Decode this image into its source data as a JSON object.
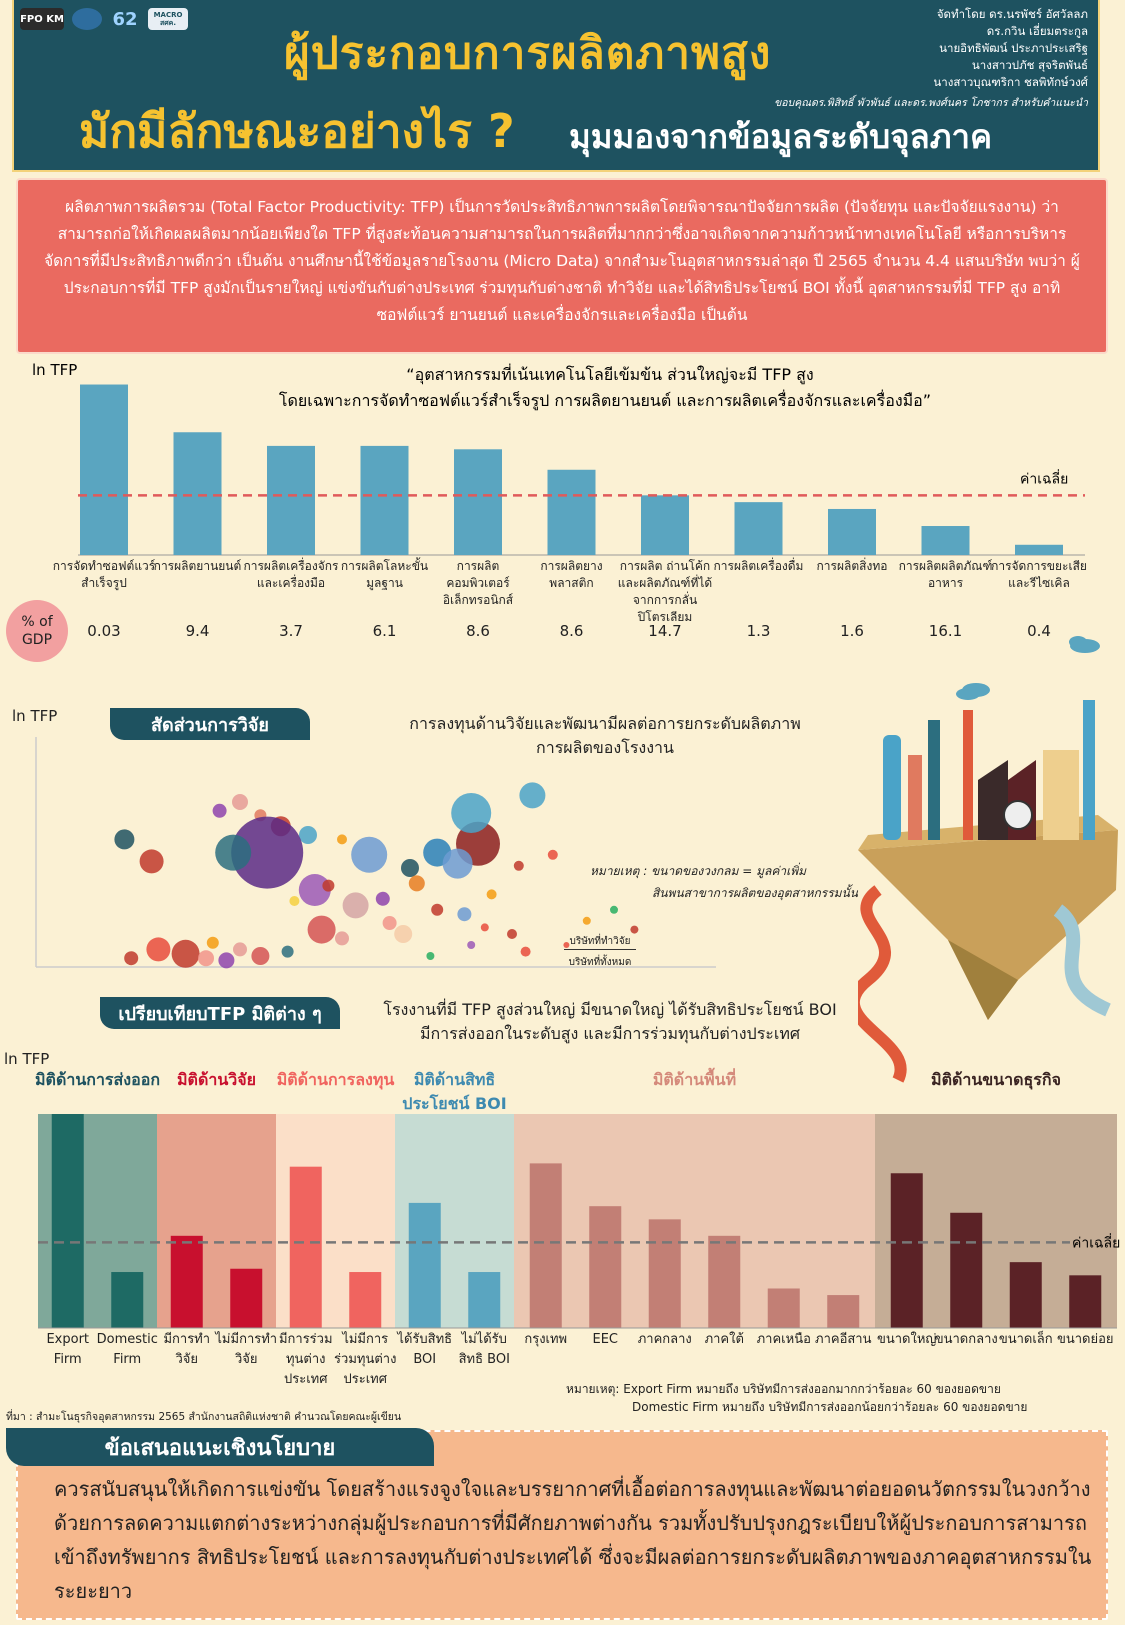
{
  "header": {
    "logos": [
      "FPO KM",
      "",
      "62",
      "MACRO สศค."
    ],
    "title_line1": "ผู้ประกอบการผลิตภาพสูง",
    "title_line2": "มักมีลักษณะอย่างไร ?",
    "title_line3": "มุมมองจากข้อมูลระดับจุลภาค",
    "authors": [
      "จัดทำโดย ดร.นรพัชร์ อัศวัลลภ",
      "ดร.กวิน เอี่ยมตระกูล",
      "นายอิทธิพัฒน์ ประภาประเสริฐ",
      "นางสาวปภัช สุจริตพันธ์",
      "นางสาวบุณฑริกา ชลพิทักษ์วงศ์"
    ],
    "ack": "ขอบคุณดร.พิสิทธิ์ พัวพันธ์ และดร.พงศ์นคร โภชากร สำหรับคำแนะนำ"
  },
  "intro": "ผลิตภาพการผลิตรวม (Total Factor Productivity: TFP) เป็นการวัดประสิทธิภาพการผลิตโดยพิจารณาปัจจัยการผลิต (ปัจจัยทุน และปัจจัยแรงงาน) ว่าสามารถก่อให้เกิดผลผลิตมากน้อยเพียงใด TFP ที่สูงสะท้อนความสามารถในการผลิตที่มากกว่าซึ่งอาจเกิดจากความก้าวหน้าทางเทคโนโลยี หรือการบริหารจัดการที่มีประสิทธิภาพดีกว่า เป็นต้น งานศึกษานี้ใช้ข้อมูลรายโรงงาน (Micro Data) จากสำมะโนอุตสาหกรรมล่าสุด ปี 2565 จำนวน 4.4 แสนบริษัท พบว่า ผู้ประกอบการที่มี TFP สูงมักเป็นรายใหญ่ แข่งขันกับต่างประเทศ ร่วมทุนกับต่างชาติ ทำวิจัย และได้สิทธิประโยชน์ BOI ทั้งนี้ อุตสาหกรรมที่มี TFP สูง อาทิ ซอฟต์แวร์ ยานยนต์ และเครื่องจักรและเครื่องมือ เป็นต้น",
  "chart_data": [
    {
      "type": "bar",
      "ylabel": "ln TFP",
      "title": "“อุตสาหกรรมที่เน้นเทคโนโลยีเข้มข้น ส่วนใหญ่จะมี TFP สูง",
      "subtitle": "โดยเฉพาะการจัดทำซอฟต์แวร์สำเร็จรูป การผลิตยานยนต์ และการผลิตเครื่องจักรและเครื่องมือ”",
      "avg_label": "ค่าเฉลี่ย",
      "avg_value": 3.5,
      "categories": [
        "การจัดทำซอฟต์แวร์สำเร็จรูป",
        "การผลิตยานยนต์",
        "การผลิตเครื่องจักรและเครื่องมือ",
        "การผลิตโลหะขั้นมูลฐาน",
        "การผลิตคอมพิวเตอร์อิเล็กทรอนิกส์",
        "การผลิตยางพลาสติก",
        "การผลิต ถ่านโค้กและผลิตภัณฑ์ที่ได้จากการกลั่นปิโตรเลียม",
        "การผลิตเครื่องดื่ม",
        "การผลิตสิ่งทอ",
        "การผลิตผลิตภัณฑ์อาหาร",
        "การจัดการขยะเสียและรีไซเคิล"
      ],
      "values": [
        10,
        7.2,
        6.4,
        6.4,
        6.2,
        5.0,
        3.5,
        3.1,
        2.7,
        1.7,
        0.6
      ],
      "ylim": [
        0,
        10.5
      ],
      "gdp_label": "% of GDP",
      "gdp_share": [
        "0.03",
        "9.4",
        "3.7",
        "6.1",
        "8.6",
        "8.6",
        "14.7",
        "1.3",
        "1.6",
        "16.1",
        "0.4"
      ]
    },
    {
      "type": "scatter",
      "ylabel": "ln TFP",
      "tag": "สัดส่วนการวิจัย",
      "title": "การลงทุนด้านวิจัยและพัฒนามีผลต่อการยกระดับผลิตภาพ",
      "title2": "การผลิตของโรงงาน",
      "note1": "หมายเหตุ : ขนาดของวงกลม = มูลค่าเพิ่ม",
      "note2": "สินพนสาขาการผลิตของอุตสาหกรรมนั้น",
      "xlabel_num": "บริษัทที่ทำวิจัย",
      "xlabel_den": "บริษัทที่ทั้งหมด",
      "points": [
        {
          "x": 0.3,
          "y": 0.75,
          "r": 8,
          "c": "#e59b95"
        },
        {
          "x": 0.27,
          "y": 0.71,
          "r": 7,
          "c": "#8e44ad"
        },
        {
          "x": 0.33,
          "y": 0.69,
          "r": 6,
          "c": "#e07a5f"
        },
        {
          "x": 0.36,
          "y": 0.64,
          "r": 10,
          "c": "#c0392b"
        },
        {
          "x": 0.4,
          "y": 0.6,
          "r": 9,
          "c": "#4aa3c8"
        },
        {
          "x": 0.13,
          "y": 0.58,
          "r": 10,
          "c": "#1e5260"
        },
        {
          "x": 0.34,
          "y": 0.52,
          "r": 36,
          "c": "#5b2a86"
        },
        {
          "x": 0.29,
          "y": 0.52,
          "r": 18,
          "c": "#2c6e7f"
        },
        {
          "x": 0.17,
          "y": 0.48,
          "r": 12,
          "c": "#c0392b"
        },
        {
          "x": 0.45,
          "y": 0.58,
          "r": 5,
          "c": "#f39c12"
        },
        {
          "x": 0.49,
          "y": 0.51,
          "r": 18,
          "c": "#6c9bd2"
        },
        {
          "x": 0.55,
          "y": 0.45,
          "r": 9,
          "c": "#1e5260"
        },
        {
          "x": 0.56,
          "y": 0.38,
          "r": 8,
          "c": "#e67e22"
        },
        {
          "x": 0.59,
          "y": 0.52,
          "r": 14,
          "c": "#2980b9"
        },
        {
          "x": 0.65,
          "y": 0.56,
          "r": 22,
          "c": "#8b1e1e"
        },
        {
          "x": 0.64,
          "y": 0.7,
          "r": 20,
          "c": "#4aa3c8"
        },
        {
          "x": 0.73,
          "y": 0.78,
          "r": 13,
          "c": "#4aa3c8"
        },
        {
          "x": 0.62,
          "y": 0.47,
          "r": 15,
          "c": "#6c9bd2"
        },
        {
          "x": 0.71,
          "y": 0.46,
          "r": 5,
          "c": "#c0392b"
        },
        {
          "x": 0.76,
          "y": 0.51,
          "r": 5,
          "c": "#e74c3c"
        },
        {
          "x": 0.41,
          "y": 0.35,
          "r": 16,
          "c": "#9b59b6"
        },
        {
          "x": 0.38,
          "y": 0.3,
          "r": 5,
          "c": "#f4d03f"
        },
        {
          "x": 0.43,
          "y": 0.37,
          "r": 6,
          "c": "#c0392b"
        },
        {
          "x": 0.47,
          "y": 0.28,
          "r": 13,
          "c": "#d4a5a5"
        },
        {
          "x": 0.51,
          "y": 0.31,
          "r": 7,
          "c": "#8e44ad"
        },
        {
          "x": 0.42,
          "y": 0.17,
          "r": 14,
          "c": "#d35454"
        },
        {
          "x": 0.45,
          "y": 0.13,
          "r": 7,
          "c": "#e59b95"
        },
        {
          "x": 0.52,
          "y": 0.2,
          "r": 7,
          "c": "#f1948a"
        },
        {
          "x": 0.54,
          "y": 0.15,
          "r": 9,
          "c": "#f5cba7"
        },
        {
          "x": 0.59,
          "y": 0.26,
          "r": 6,
          "c": "#c0392b"
        },
        {
          "x": 0.63,
          "y": 0.24,
          "r": 7,
          "c": "#6c9bd2"
        },
        {
          "x": 0.67,
          "y": 0.33,
          "r": 5,
          "c": "#f39c12"
        },
        {
          "x": 0.7,
          "y": 0.15,
          "r": 5,
          "c": "#c0392b"
        },
        {
          "x": 0.81,
          "y": 0.21,
          "r": 4,
          "c": "#f39c12"
        },
        {
          "x": 0.85,
          "y": 0.26,
          "r": 4,
          "c": "#27ae60"
        },
        {
          "x": 0.88,
          "y": 0.17,
          "r": 4,
          "c": "#c0392b"
        },
        {
          "x": 0.72,
          "y": 0.07,
          "r": 5,
          "c": "#e74c3c"
        },
        {
          "x": 0.64,
          "y": 0.1,
          "r": 4,
          "c": "#9b59b6"
        },
        {
          "x": 0.18,
          "y": 0.08,
          "r": 12,
          "c": "#e74c3c"
        },
        {
          "x": 0.22,
          "y": 0.06,
          "r": 14,
          "c": "#c0392b"
        },
        {
          "x": 0.25,
          "y": 0.04,
          "r": 8,
          "c": "#f1948a"
        },
        {
          "x": 0.28,
          "y": 0.03,
          "r": 8,
          "c": "#8e44ad"
        },
        {
          "x": 0.3,
          "y": 0.08,
          "r": 7,
          "c": "#e59b95"
        },
        {
          "x": 0.33,
          "y": 0.05,
          "r": 9,
          "c": "#d35454"
        },
        {
          "x": 0.37,
          "y": 0.07,
          "r": 6,
          "c": "#2c6e7f"
        },
        {
          "x": 0.14,
          "y": 0.04,
          "r": 7,
          "c": "#c0392b"
        },
        {
          "x": 0.26,
          "y": 0.11,
          "r": 6,
          "c": "#f39c12"
        },
        {
          "x": 0.58,
          "y": 0.05,
          "r": 4,
          "c": "#27ae60"
        },
        {
          "x": 0.66,
          "y": 0.18,
          "r": 4,
          "c": "#e74c3c"
        },
        {
          "x": 0.78,
          "y": 0.1,
          "r": 3,
          "c": "#e74c3c"
        }
      ]
    },
    {
      "type": "bar",
      "ylabel": "ln TFP",
      "tag": "เปรียบเทียบTFP มิติต่าง ๆ",
      "title": "โรงงานที่มี TFP สูงส่วนใหญ่ มีขนาดใหญ่ ได้รับสิทธิประโยชน์ BOI",
      "title2": "มีการส่งออกในระดับสูง และมีการร่วมทุนกับต่างประเทศ",
      "avg_label": "ค่าเฉลี่ย",
      "avg_value": 2.6,
      "ylim": [
        0,
        6.5
      ],
      "groups": [
        {
          "name": "มิติด้านการส่งออก",
          "bg": "#7fa89a",
          "bar": "#1e6a64",
          "name_color": "#1e5260",
          "categories": [
            "Export Firm",
            "Domestic Firm"
          ],
          "values": [
            6.5,
            1.7
          ]
        },
        {
          "name": "มิติด้านวิจัย",
          "bg": "#e6a28d",
          "bar": "#c8102e",
          "name_color": "#c8102e",
          "categories": [
            "มีการทำวิจัย",
            "ไม่มีการทำวิจัย"
          ],
          "values": [
            2.8,
            1.8
          ]
        },
        {
          "name": "มิติด้านการลงทุน",
          "bg": "#fbdfc8",
          "bar": "#f0645f",
          "name_color": "#f0645f",
          "categories": [
            "มีการร่วมทุนต่างประเทศ",
            "ไม่มีการร่วมทุนต่างประเทศ"
          ],
          "values": [
            4.9,
            1.7
          ]
        },
        {
          "name": "มิติด้านสิทธิประโยชน์ BOI",
          "bg": "#c6dcd3",
          "bar": "#5aa5c0",
          "name_color": "#3e8ab0",
          "categories": [
            "ได้รับสิทธิ BOI",
            "ไม่ได้รับสิทธิ BOI"
          ],
          "values": [
            3.8,
            1.7
          ]
        },
        {
          "name": "มิติด้านพื้นที่",
          "bg": "#ebc7b2",
          "bar": "#c27f75",
          "name_color": "#d4897a",
          "categories": [
            "กรุงเทพ",
            "EEC",
            "ภาคกลาง",
            "ภาคใต้",
            "ภาคเหนือ",
            "ภาคอีสาน"
          ],
          "values": [
            5.0,
            3.7,
            3.3,
            2.8,
            1.2,
            1.0
          ]
        },
        {
          "name": "มิติด้านขนาดธุรกิจ",
          "bg": "#c5ad96",
          "bar": "#5b2226",
          "name_color": "#3a2422",
          "categories": [
            "ขนาดใหญ่",
            "ขนาดกลาง",
            "ขนาดเล็ก",
            "ขนาดย่อย"
          ],
          "values": [
            4.7,
            3.5,
            2.0,
            1.6
          ]
        }
      ]
    }
  ],
  "note_export": "หมายเหตุ: Export Firm หมายถึง บริษัทมีการส่งออกมากกว่าร้อยละ 60 ของยอดขาย",
  "note_domestic": "Domestic Firm หมายถึง บริษัทมีการส่งออกน้อยกว่าร้อยละ 60 ของยอดขาย",
  "source": "ที่มา : สำมะโนธุรกิจอุตสาหกรรม 2565 สำนักงานสถิติแห่งชาติ คำนวณโดยคณะผู้เขียน",
  "policy": {
    "tag": "ข้อเสนอแนะเชิงนโยบาย",
    "text": "ควรสนับสนุนให้เกิดการแข่งขัน โดยสร้างแรงจูงใจและบรรยากาศที่เอื้อต่อการลงทุนและพัฒนาต่อยอดนวัตกรรมในวงกว้างด้วยการลดความแตกต่างระหว่างกลุ่มผู้ประกอบการที่มีศักยภาพต่างกัน รวมทั้งปรับปรุงกฎระเบียบให้ผู้ประกอบการสามารถเข้าถึงทรัพยากร สิทธิประโยชน์ และการลงทุนกับต่างประเทศได้ ซึ่งจะมีผลต่อการยกระดับผลิตภาพของภาคอุตสาหกรรมในระยะยาว"
  }
}
